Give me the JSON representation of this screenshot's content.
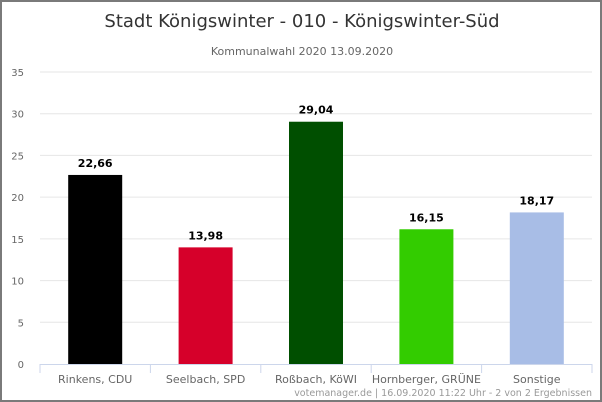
{
  "chart_data": {
    "type": "bar",
    "title": "Stadt Königswinter - 010 - Königswinter-Süd",
    "subtitle": "Kommunalwahl 2020 13.09.2020",
    "categories": [
      "Rinkens, CDU",
      "Seelbach, SPD",
      "Roßbach, KöWI",
      "Hornberger, GRÜNE",
      "Sonstige"
    ],
    "values": [
      22.66,
      13.98,
      29.04,
      16.15,
      18.17
    ],
    "value_labels": [
      "22,66",
      "13,98",
      "29,04",
      "16,15",
      "18,17"
    ],
    "colors": [
      "#000000",
      "#d6002a",
      "#004f00",
      "#33cc00",
      "#a8bde6"
    ],
    "yticks": [
      0,
      5,
      10,
      15,
      20,
      25,
      30,
      35
    ],
    "ylim": [
      0,
      35
    ],
    "xlabel": "",
    "ylabel": "",
    "grid": true,
    "credits": "votemanager.de | 16.09.2020 11:22 Uhr - 2 von 2 Ergebnissen"
  }
}
